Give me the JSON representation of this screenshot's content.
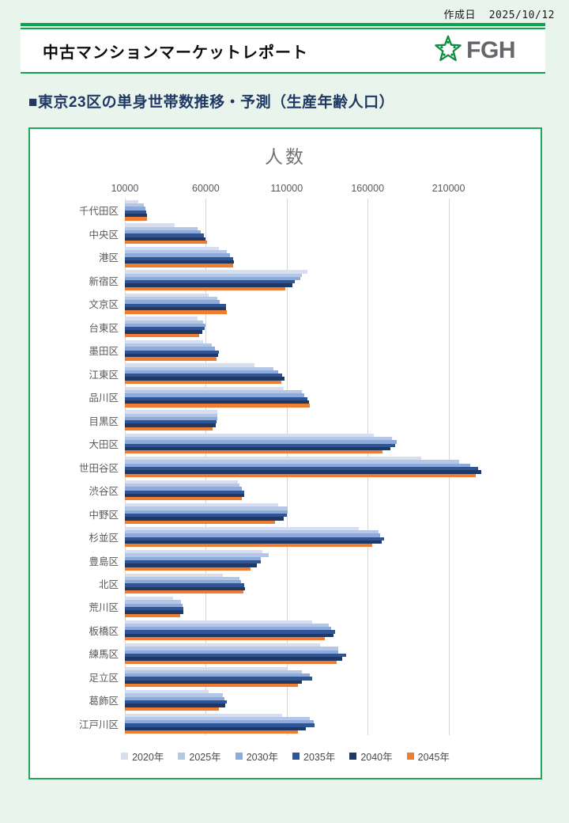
{
  "page": {
    "created_label": "作成日",
    "created_date": "2025/10/12"
  },
  "header": {
    "title": "中古マンションマーケットレポート",
    "logo_text": "FGH"
  },
  "section": {
    "title": "■東京23区の単身世帯数推移・予測（生産年齢人口）"
  },
  "chart_data": {
    "type": "bar",
    "orientation": "horizontal",
    "title": "人数",
    "axis": {
      "min": 10000,
      "ticks": [
        10000,
        60000,
        110000,
        160000,
        210000
      ],
      "max": 240000
    },
    "gridlines": true,
    "legend_position": "bottom",
    "categories": [
      "千代田区",
      "中央区",
      "港区",
      "新宿区",
      "文京区",
      "台東区",
      "墨田区",
      "江東区",
      "品川区",
      "目黒区",
      "大田区",
      "世田谷区",
      "渋谷区",
      "中野区",
      "杉並区",
      "豊島区",
      "北区",
      "荒川区",
      "板橋区",
      "練馬区",
      "足立区",
      "葛飾区",
      "江戸川区"
    ],
    "series": [
      {
        "name": "2020年",
        "color": "#D6DEEF",
        "values": [
          18500,
          41000,
          68000,
          123000,
          62000,
          55000,
          58500,
          90000,
          108000,
          67000,
          164000,
          193000,
          80000,
          104500,
          154500,
          95000,
          70500,
          40000,
          125500,
          130500,
          110000,
          62000,
          107000
        ]
      },
      {
        "name": "2025年",
        "color": "#B4C7E7",
        "values": [
          21500,
          55000,
          73000,
          119500,
          67000,
          58500,
          63500,
          102000,
          119500,
          67000,
          175000,
          216500,
          81000,
          110500,
          166500,
          99000,
          81000,
          44500,
          136000,
          142000,
          119500,
          70500,
          124500
        ]
      },
      {
        "name": "2030年",
        "color": "#8EAADB",
        "values": [
          22500,
          57000,
          75000,
          118500,
          68500,
          60000,
          65500,
          104500,
          121000,
          67000,
          178000,
          223500,
          82500,
          110500,
          167500,
          94000,
          82000,
          45500,
          137500,
          142000,
          124500,
          71500,
          126500
        ]
      },
      {
        "name": "2035年",
        "color": "#2F5597",
        "values": [
          23000,
          59000,
          77000,
          115000,
          72500,
          59500,
          68000,
          107000,
          123000,
          66500,
          177000,
          228500,
          83500,
          110000,
          170000,
          94000,
          83500,
          46000,
          140000,
          146500,
          125500,
          73000,
          127000
        ]
      },
      {
        "name": "2040年",
        "color": "#1F3864",
        "values": [
          23500,
          60000,
          77500,
          113500,
          72500,
          58000,
          67500,
          108500,
          124000,
          66000,
          174000,
          230000,
          83500,
          108000,
          168500,
          91500,
          84000,
          46000,
          139000,
          144500,
          119500,
          72000,
          122000
        ]
      },
      {
        "name": "2045年",
        "color": "#ED7D31",
        "values": [
          23500,
          61000,
          77000,
          109000,
          73000,
          56000,
          66500,
          106500,
          124500,
          64000,
          169000,
          227000,
          82500,
          103000,
          163000,
          87500,
          83000,
          44000,
          133500,
          141000,
          117000,
          68000,
          117000
        ]
      }
    ]
  }
}
